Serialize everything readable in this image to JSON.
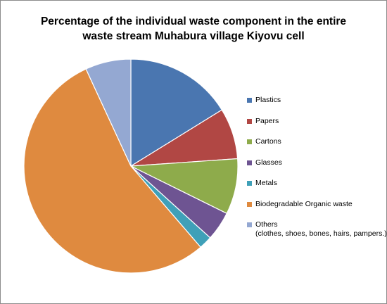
{
  "chart_data": {
    "type": "pie",
    "title_lines": [
      "Percentage of the individual waste component in the entire",
      "waste stream Muhabura village Kiyovu cell"
    ],
    "legend_position": "right",
    "slices": [
      {
        "label_lines": [
          "Plastics"
        ],
        "value": 16.2,
        "color": "#4a76b0"
      },
      {
        "label_lines": [
          "Papers"
        ],
        "value": 7.7,
        "color": "#b14744"
      },
      {
        "label_lines": [
          "Cartons"
        ],
        "value": 8.4,
        "color": "#8eab4b"
      },
      {
        "label_lines": [
          "Glasses"
        ],
        "value": 4.4,
        "color": "#6e5492"
      },
      {
        "label_lines": [
          "Metals"
        ],
        "value": 2.0,
        "color": "#3fa0b8"
      },
      {
        "label_lines": [
          "Biodegradable Organic waste"
        ],
        "value": 54.4,
        "color": "#df8a3f"
      },
      {
        "label_lines": [
          "Others",
          "(clothes, shoes, bones, hairs, pampers.)"
        ],
        "value": 6.9,
        "color": "#94a8d2"
      }
    ]
  }
}
